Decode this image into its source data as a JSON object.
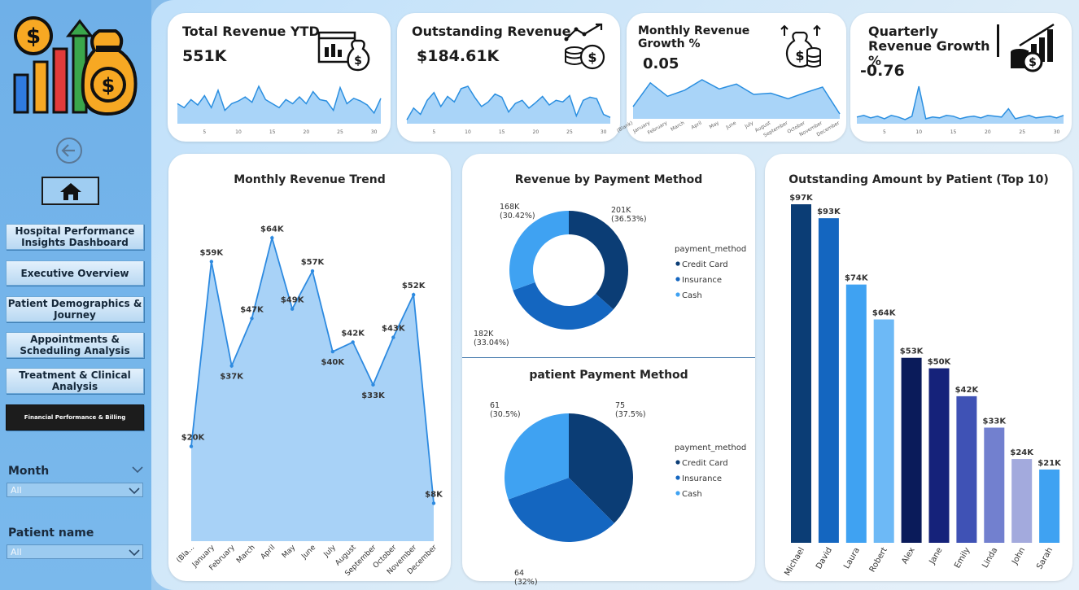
{
  "colors": {
    "accent": "#3b9ae8",
    "navy": "#0b3d75",
    "mid": "#1466c0",
    "light": "#3fa2f2"
  },
  "sidebar": {
    "logo_icon": "money-bag-bar-chart-icon",
    "back_icon": "back-arrow-icon",
    "home_icon": "home-icon",
    "nav": [
      {
        "label": "Hospital Performance Insights Dashboard"
      },
      {
        "label": "Executive Overview"
      },
      {
        "label": "Patient Demographics & Journey"
      },
      {
        "label": "Appointments & Scheduling Analysis"
      },
      {
        "label": "Treatment & Clinical Analysis"
      },
      {
        "label": "Financial Performance & Billing"
      }
    ],
    "filters": [
      {
        "label": "Month",
        "value": "All"
      },
      {
        "label": "Patient name",
        "value": "All"
      }
    ]
  },
  "kpis": [
    {
      "title": "Total Revenue YTD",
      "value": "551K",
      "icon": "invoice-chart-money-icon"
    },
    {
      "title": "Outstanding Revenue",
      "value": "$184.61K",
      "icon": "coins-growth-icon"
    },
    {
      "title": "Monthly Revenue Growth %",
      "value": "0.05",
      "icon": "money-bag-coins-icon"
    },
    {
      "title": "Quarterly Revenue Growth %",
      "value": "-0.76",
      "icon": "coins-bar-growth-icon"
    }
  ],
  "chart_data": [
    {
      "type": "area",
      "title": "Total Revenue YTD sparkline",
      "x_ticks": [
        "5",
        "10",
        "15",
        "20",
        "25",
        "30"
      ],
      "values": [
        15,
        12,
        18,
        14,
        21,
        12,
        25,
        10,
        15,
        17,
        20,
        16,
        28,
        18,
        15,
        12,
        18,
        15,
        20,
        15,
        24,
        18,
        17,
        10,
        27,
        15,
        19,
        17,
        14,
        8,
        19
      ]
    },
    {
      "type": "area",
      "title": "Outstanding Revenue sparkline",
      "x_ticks": [
        "5",
        "10",
        "15",
        "20",
        "25",
        "30"
      ],
      "values": [
        5,
        20,
        12,
        30,
        40,
        22,
        35,
        28,
        45,
        48,
        34,
        22,
        28,
        38,
        34,
        15,
        26,
        30,
        20,
        27,
        35,
        24,
        30,
        28,
        36,
        10,
        30,
        34,
        32,
        12,
        8
      ]
    },
    {
      "type": "area",
      "title": "Monthly Revenue Growth sparkline",
      "categories": [
        "(Blank)",
        "January",
        "February",
        "March",
        "April",
        "May",
        "June",
        "July",
        "August",
        "September",
        "October",
        "November",
        "December"
      ],
      "values": [
        20,
        59,
        37,
        47,
        64,
        49,
        57,
        40,
        42,
        33,
        43,
        52,
        8
      ]
    },
    {
      "type": "area",
      "title": "Quarterly Revenue Growth sparkline",
      "x_ticks": [
        "5",
        "10",
        "15",
        "20",
        "25",
        "30"
      ],
      "values": [
        8,
        10,
        7,
        9,
        6,
        10,
        8,
        5,
        9,
        45,
        6,
        8,
        7,
        10,
        9,
        6,
        8,
        9,
        7,
        10,
        9,
        8,
        18,
        6,
        8,
        10,
        7,
        8,
        9,
        7,
        10
      ]
    },
    {
      "type": "area",
      "title": "Monthly Revenue Trend",
      "categories": [
        "(Bla...",
        "January",
        "February",
        "March",
        "April",
        "May",
        "June",
        "July",
        "August",
        "September",
        "October",
        "November",
        "December"
      ],
      "values": [
        20,
        59,
        37,
        47,
        64,
        49,
        57,
        40,
        42,
        33,
        43,
        52,
        8
      ],
      "labels": [
        "$20K",
        "$59K",
        "$37K",
        "$47K",
        "$64K",
        "$49K",
        "$57K",
        "$40K",
        "$42K",
        "$33K",
        "$43K",
        "$52K",
        "$8K"
      ]
    },
    {
      "type": "pie",
      "donut": true,
      "title": "Revenue by Payment Method",
      "legend_title": "payment_method",
      "slices": [
        {
          "name": "Credit Card",
          "value": 201,
          "label": "201K (36.53%)",
          "color": "#0b3d75"
        },
        {
          "name": "Insurance",
          "value": 182,
          "label": "182K (33.04%)",
          "color": "#1466c0"
        },
        {
          "name": "Cash",
          "value": 168,
          "label": "168K (30.42%)",
          "color": "#3fa2f2"
        }
      ]
    },
    {
      "type": "pie",
      "title": "patient Payment Method",
      "legend_title": "payment_method",
      "slices": [
        {
          "name": "Credit Card",
          "value": 75,
          "label": "75 (37.5%)",
          "color": "#0b3d75"
        },
        {
          "name": "Insurance",
          "value": 64,
          "label": "64 (32%)",
          "color": "#1466c0"
        },
        {
          "name": "Cash",
          "value": 61,
          "label": "61 (30.5%)",
          "color": "#3fa2f2"
        }
      ]
    },
    {
      "type": "bar",
      "title": "Outstanding Amount by Patient (Top 10)",
      "categories": [
        "Michael",
        "David",
        "Laura",
        "Robert",
        "Alex",
        "Jane",
        "Emily",
        "Linda",
        "John",
        "Sarah"
      ],
      "values": [
        97,
        93,
        74,
        64,
        53,
        50,
        42,
        33,
        24,
        21
      ],
      "labels": [
        "$97K",
        "$93K",
        "$74K",
        "$64K",
        "$53K",
        "$50K",
        "$42K",
        "$33K",
        "$24K",
        "$21K"
      ],
      "colors": [
        "#0b3d75",
        "#1466c0",
        "#3fa2f2",
        "#6db9f6",
        "#0a1b5a",
        "#15227a",
        "#3f52b5",
        "#7280cf",
        "#a3aadd",
        "#3fa2f2"
      ]
    }
  ]
}
